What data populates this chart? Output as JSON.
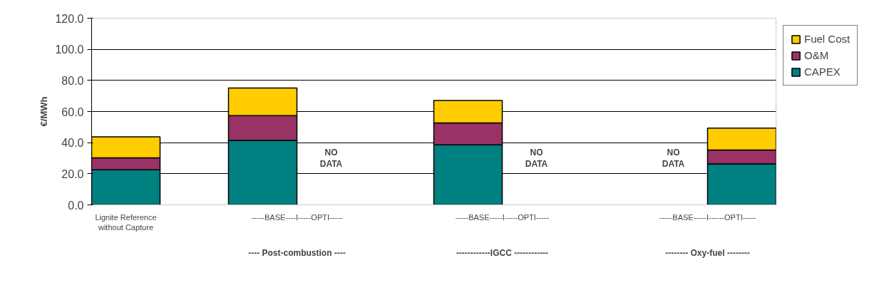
{
  "chart_data": {
    "type": "bar",
    "stacked": true,
    "ylabel": "€/MWh",
    "categories": [
      "Lignite Reference\nwithout Capture",
      null,
      null,
      null,
      null,
      null,
      null,
      null,
      null,
      null
    ],
    "series": [
      {
        "name": "CAPEX",
        "color": "#008080",
        "values": [
          22.6,
          null,
          41.4,
          null,
          null,
          38.6,
          null,
          null,
          null,
          26.3
        ]
      },
      {
        "name": "O&M",
        "color": "#993366",
        "values": [
          7.6,
          null,
          16.0,
          null,
          null,
          14.1,
          null,
          null,
          null,
          9.0
        ]
      },
      {
        "name": "Fuel Cost",
        "color": "#ffcc00",
        "values": [
          13.5,
          null,
          17.7,
          null,
          null,
          14.4,
          null,
          null,
          null,
          14.1
        ]
      }
    ],
    "ylim": [
      0,
      120
    ],
    "yticks": [
      {
        "value": 0,
        "label": "0.0"
      },
      {
        "value": 20,
        "label": "20.0"
      },
      {
        "value": 40,
        "label": "40.0"
      },
      {
        "value": 60,
        "label": "60.0"
      },
      {
        "value": 80,
        "label": "80.0"
      },
      {
        "value": 100,
        "label": "100.0"
      },
      {
        "value": 120,
        "label": "120.0"
      }
    ],
    "grid": "y",
    "legend": "top right",
    "annotations": [
      "NO\nDATA",
      "NO\nDATA",
      "NO\nDATA",
      "-----BASE----I-----OPTI-----",
      "-----BASE-----I-----OPTI-----",
      "-----BASE-----I------OPTI-----",
      "---- Post-combustion ----",
      "------------IGCC ------------",
      "-------- Oxy-fuel --------"
    ]
  }
}
